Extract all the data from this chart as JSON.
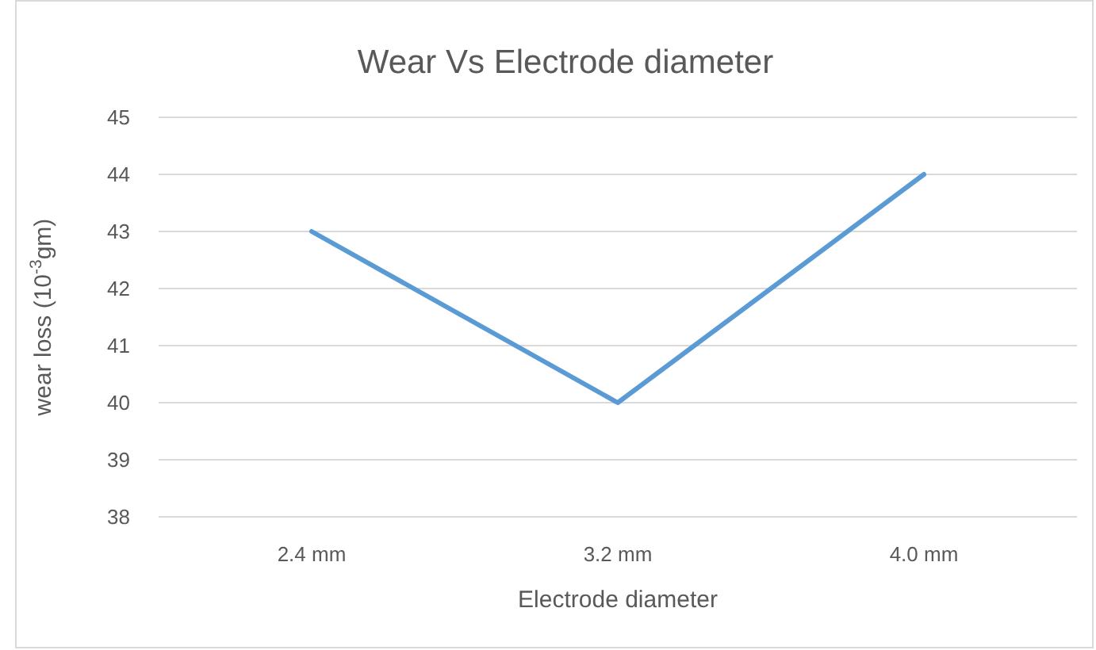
{
  "chart_data": {
    "type": "line",
    "title": "Wear Vs Electrode diameter",
    "xlabel": "Electrode diameter",
    "ylabel": "wear loss (10$^{-3}$gm)",
    "categories": [
      "2.4 mm",
      "3.2 mm",
      "4.0 mm"
    ],
    "series": [
      {
        "color": "#5b9bd5",
        "values": [
          43,
          40,
          44
        ]
      }
    ],
    "ylim": [
      38,
      45
    ],
    "yticks": [
      38,
      39,
      40,
      41,
      42,
      43,
      44,
      45
    ],
    "grid": "y",
    "marker": "none",
    "line_style": "solid"
  }
}
